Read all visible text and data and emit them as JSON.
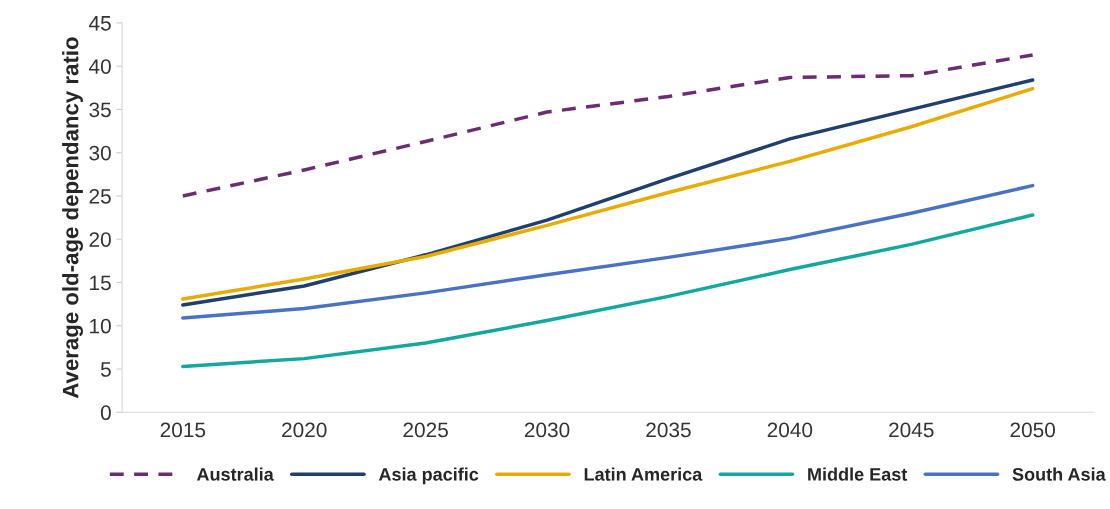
{
  "chart_data": {
    "type": "line",
    "ylabel": "Average old-age dependancy ratio",
    "categories": [
      "2015",
      "2020",
      "2025",
      "2030",
      "2035",
      "2040",
      "2045",
      "2050"
    ],
    "series": [
      {
        "name": "Australia",
        "color": "#6b2c72",
        "line_style": "dashed",
        "values": [
          25,
          28,
          31.3,
          34.7,
          36.5,
          38.7,
          38.9,
          41.3
        ]
      },
      {
        "name": "Asia pacific",
        "color": "#1f3f6e",
        "values": [
          12.4,
          14.6,
          18.2,
          22.2,
          27,
          31.6,
          35,
          38.4
        ]
      },
      {
        "name": "Latin America",
        "color": "#eaab00",
        "values": [
          13.1,
          15.4,
          18,
          21.6,
          25.4,
          29,
          33,
          37.4
        ]
      },
      {
        "name": "Middle East",
        "color": "#13a89e",
        "values": [
          5.3,
          6.2,
          8,
          10.6,
          13.4,
          16.5,
          19.4,
          22.8
        ]
      },
      {
        "name": "South Asia",
        "color": "#4a72c4",
        "values": [
          10.9,
          12,
          13.8,
          15.9,
          17.9,
          20.1,
          23,
          26.2
        ]
      }
    ],
    "ylim": [
      0,
      45
    ],
    "yticks": [
      0,
      5,
      10,
      15,
      20,
      25,
      30,
      35,
      40,
      45
    ],
    "grid": false,
    "legend": "bottom",
    "marker": "none"
  }
}
